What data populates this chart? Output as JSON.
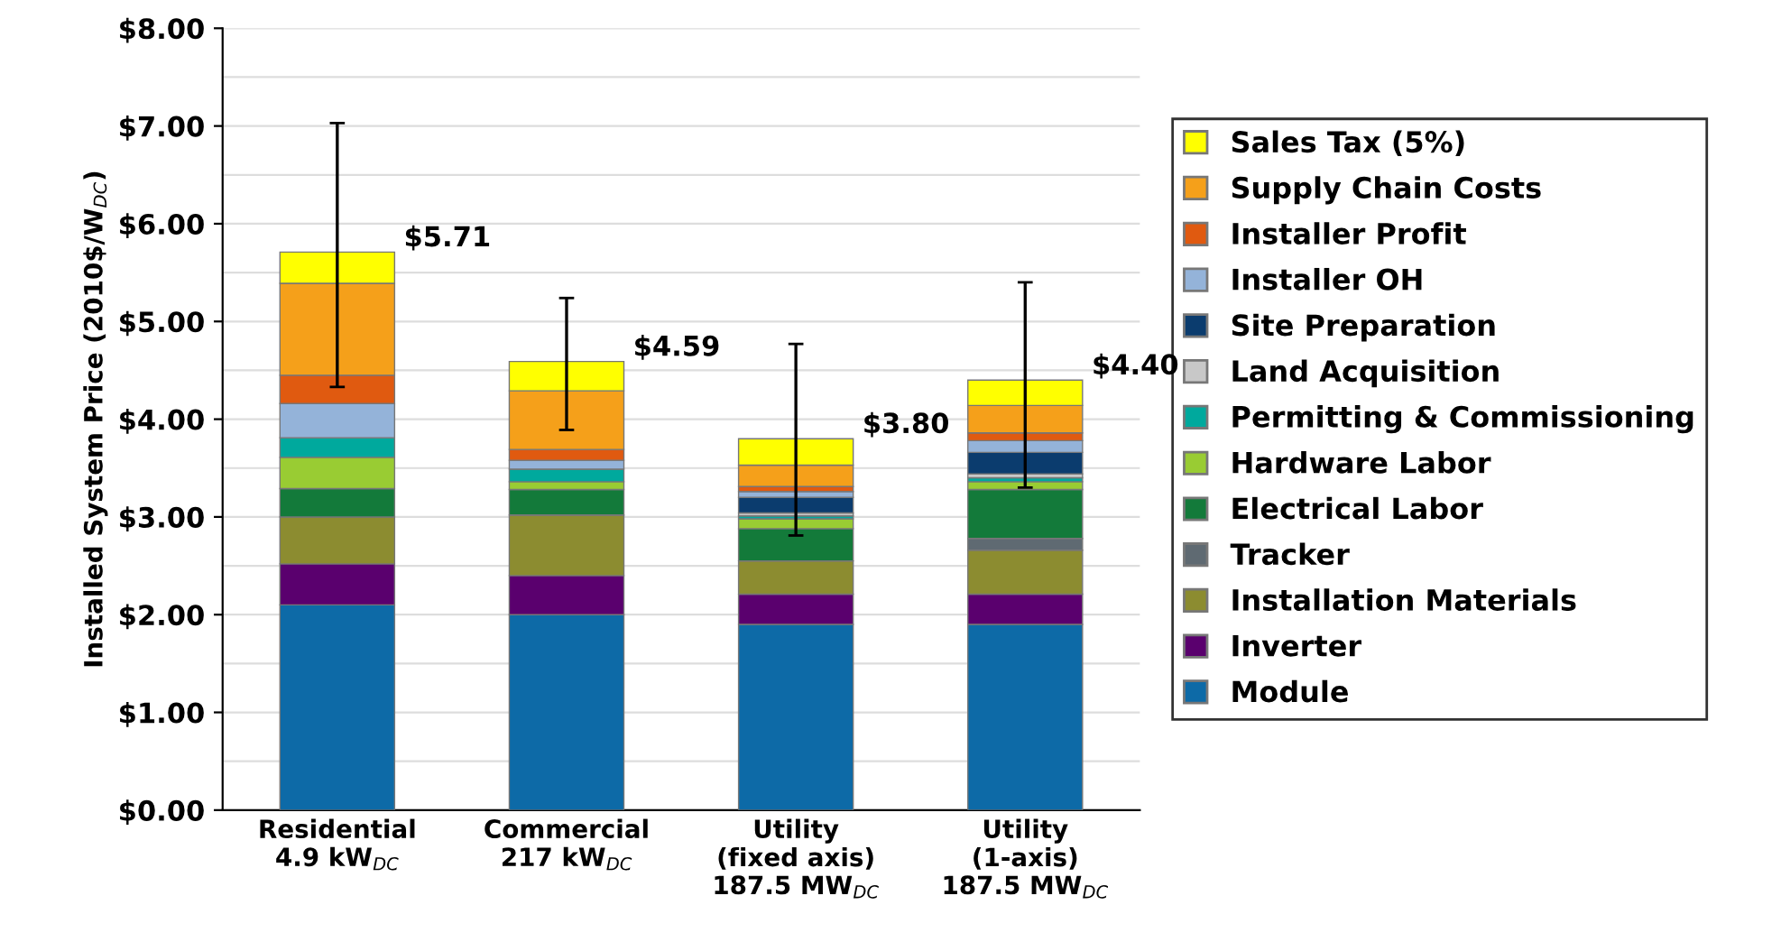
{
  "chart_data": {
    "type": "bar",
    "stacked": true,
    "ylabel": "Installed System Price (2010$/W$_{DC}$)",
    "categories": [
      "Residential\n4.9 kW$_{DC}$",
      "Commercial\n217 kW$_{DC}$",
      "Utility\n(fixed axis)\n187.5 MW$_{DC}$",
      "Utility\n(1-axis)\n187.5 MW$_{DC}$"
    ],
    "series": [
      {
        "name": "Module",
        "color": "#0d6aa7",
        "values": [
          2.1,
          2.0,
          1.9,
          1.9
        ]
      },
      {
        "name": "Inverter",
        "color": "#5a006e",
        "values": [
          0.42,
          0.4,
          0.31,
          0.31
        ]
      },
      {
        "name": "Installation Materials",
        "color": "#8c8c30",
        "values": [
          0.48,
          0.62,
          0.34,
          0.45
        ]
      },
      {
        "name": "Tracker",
        "color": "#5f6a72",
        "values": [
          0,
          0,
          0,
          0.12
        ]
      },
      {
        "name": "Electrical Labor",
        "color": "#137a3a",
        "values": [
          0.29,
          0.26,
          0.33,
          0.5
        ]
      },
      {
        "name": "Hardware Labor",
        "color": "#99cc33",
        "values": [
          0.32,
          0.08,
          0.1,
          0.08
        ]
      },
      {
        "name": "Permitting & Commissioning",
        "color": "#00a99d",
        "values": [
          0.2,
          0.13,
          0.03,
          0.04
        ]
      },
      {
        "name": "Land Acquisition",
        "color": "#c8c8c8",
        "values": [
          0,
          0,
          0.03,
          0.04
        ]
      },
      {
        "name": "Site Preparation",
        "color": "#0b3c6e",
        "values": [
          0,
          0,
          0.16,
          0.22
        ]
      },
      {
        "name": "Installer OH",
        "color": "#94b3d9",
        "values": [
          0.35,
          0.09,
          0.06,
          0.12
        ]
      },
      {
        "name": "Installer Profit",
        "color": "#e05a10",
        "values": [
          0.29,
          0.11,
          0.05,
          0.08
        ]
      },
      {
        "name": "Supply Chain Costs",
        "color": "#f5a01a",
        "values": [
          0.94,
          0.6,
          0.22,
          0.28
        ]
      },
      {
        "name": "Sales Tax (5%)",
        "color": "#ffff00",
        "values": [
          0.32,
          0.3,
          0.27,
          0.26
        ],
        "errors": [
          [
            4.33,
            7.03
          ],
          [
            3.89,
            5.24
          ],
          [
            2.81,
            4.77
          ],
          [
            3.3,
            5.4
          ]
        ]
      }
    ],
    "totals": [
      "$5.71",
      "$4.59",
      "$3.80",
      "$4.40"
    ],
    "ylim": [
      0,
      8
    ],
    "yticks": [
      {
        "value": 0,
        "label": "$0.00"
      },
      {
        "value": 0.5,
        "label": null
      },
      {
        "value": 1,
        "label": "$1.00"
      },
      {
        "value": 1.5,
        "label": null
      },
      {
        "value": 2,
        "label": "$2.00"
      },
      {
        "value": 2.5,
        "label": null
      },
      {
        "value": 3,
        "label": "$3.00"
      },
      {
        "value": 3.5,
        "label": null
      },
      {
        "value": 4,
        "label": "$4.00"
      },
      {
        "value": 4.5,
        "label": null
      },
      {
        "value": 5,
        "label": "$5.00"
      },
      {
        "value": 5.5,
        "label": null
      },
      {
        "value": 6,
        "label": "$6.00"
      },
      {
        "value": 6.5,
        "label": null
      },
      {
        "value": 7,
        "label": "$7.00"
      },
      {
        "value": 7.5,
        "label": null
      },
      {
        "value": 8,
        "label": "$8.00"
      }
    ],
    "grid": "y",
    "legend": "right"
  }
}
